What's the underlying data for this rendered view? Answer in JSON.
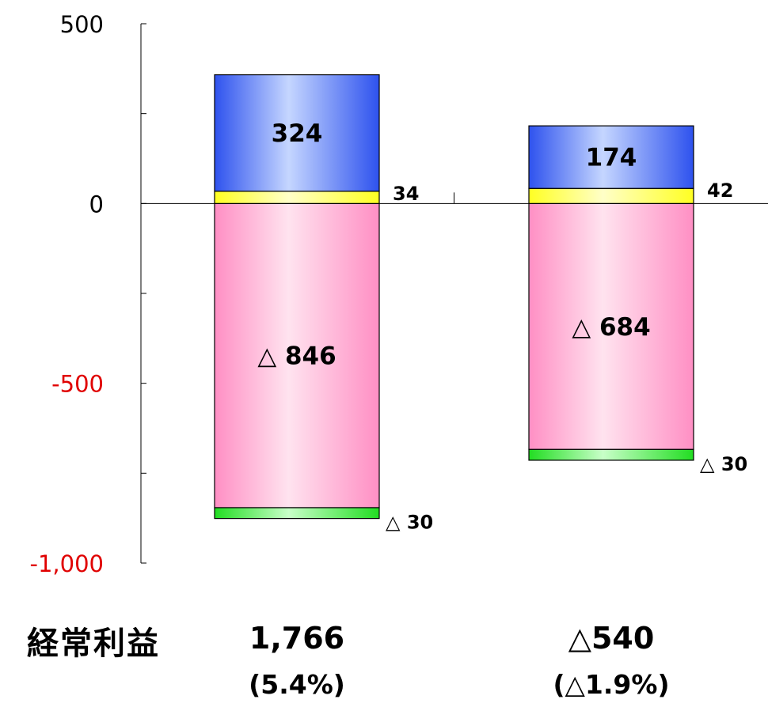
{
  "chart_data": {
    "type": "bar",
    "stacked": true,
    "categories": [
      "",
      ""
    ],
    "ylim": [
      -1000,
      500
    ],
    "y_ticks": [
      500,
      0,
      -500,
      -1000
    ],
    "y_tick_labels": [
      "500",
      "0",
      "-500",
      "-1,000"
    ],
    "negative_tick_color": "#e00000",
    "series": [
      {
        "color": "#ff8fc4",
        "values": [
          -846,
          -684
        ],
        "labels": [
          "△ 846",
          "△ 684"
        ]
      },
      {
        "color": "#33dd33",
        "values": [
          -30,
          -30
        ],
        "labels": [
          "△ 30",
          "△ 30"
        ]
      },
      {
        "color": "#ffff33",
        "values": [
          34,
          42
        ],
        "labels": [
          "34",
          "42"
        ]
      },
      {
        "color": "#3a60f0",
        "values": [
          324,
          174
        ],
        "labels": [
          "324",
          "174"
        ]
      }
    ],
    "grid": false,
    "legend": "none"
  },
  "footer": {
    "row_title": "経常利益",
    "columns": [
      {
        "profit": "1,766",
        "ratio": "(5.4%)"
      },
      {
        "profit": "△540",
        "ratio": "(△1.9%)"
      }
    ]
  }
}
